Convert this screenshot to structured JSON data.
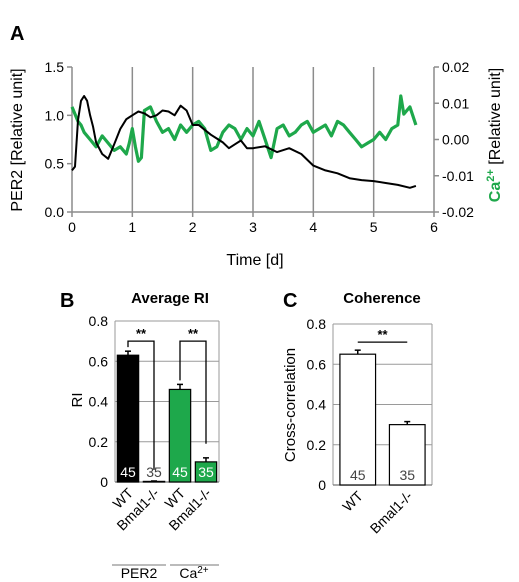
{
  "panels": {
    "a": {
      "letter": "A"
    },
    "b": {
      "letter": "B"
    },
    "c": {
      "letter": "C"
    }
  },
  "chart_data": [
    {
      "type": "line",
      "xlabel": "Time [d]",
      "ylabel": "PER2 [Relative unit]",
      "y2label_prefix": "Ca",
      "y2label_sup": "2+",
      "y2label_suffix": " [Relative unit]",
      "xlim": [
        0,
        6
      ],
      "ylim": [
        0,
        1.5
      ],
      "y2lim": [
        -0.02,
        0.02
      ],
      "x_ticks": [
        "0",
        "1",
        "2",
        "3",
        "4",
        "5",
        "6"
      ],
      "y_ticks": [
        "0.0",
        "0.5",
        "1.0",
        "1.5"
      ],
      "y2_ticks": [
        "-0.02",
        "-0.01",
        "0.00",
        "0.01",
        "0.02"
      ],
      "grid": "vertical",
      "colors": {
        "per2": "#000000",
        "ca": "#1ea84b"
      },
      "series": [
        {
          "axis": "left",
          "x": [
            0.0,
            0.05,
            0.1,
            0.15,
            0.2,
            0.25,
            0.3,
            0.35,
            0.4,
            0.5,
            0.6,
            0.7,
            0.8,
            0.9,
            1.0,
            1.1,
            1.2,
            1.3,
            1.4,
            1.5,
            1.6,
            1.7,
            1.8,
            1.9,
            2.0,
            2.1,
            2.2,
            2.3,
            2.4,
            2.5,
            2.6,
            2.7,
            2.8,
            2.9,
            3.0,
            3.2,
            3.4,
            3.6,
            3.8,
            4.0,
            4.2,
            4.4,
            4.6,
            4.8,
            5.0,
            5.2,
            5.4,
            5.6,
            5.7
          ],
          "y": [
            0.43,
            0.47,
            0.95,
            1.15,
            1.2,
            1.15,
            1.0,
            0.88,
            0.72,
            0.6,
            0.55,
            0.7,
            0.86,
            0.96,
            1.0,
            1.04,
            1.02,
            0.98,
            1.0,
            1.05,
            1.04,
            1.0,
            1.1,
            1.05,
            0.9,
            0.9,
            0.85,
            0.8,
            0.76,
            0.72,
            0.66,
            0.7,
            0.74,
            0.66,
            0.66,
            0.68,
            0.62,
            0.66,
            0.6,
            0.48,
            0.43,
            0.4,
            0.35,
            0.33,
            0.32,
            0.3,
            0.28,
            0.25,
            0.27
          ]
        },
        {
          "axis": "right",
          "x": [
            0.0,
            0.05,
            0.1,
            0.15,
            0.2,
            0.3,
            0.4,
            0.5,
            0.6,
            0.7,
            0.8,
            0.9,
            0.95,
            1.0,
            1.05,
            1.1,
            1.15,
            1.2,
            1.3,
            1.4,
            1.5,
            1.6,
            1.7,
            1.8,
            1.9,
            2.0,
            2.1,
            2.2,
            2.3,
            2.4,
            2.5,
            2.6,
            2.7,
            2.8,
            2.9,
            3.0,
            3.1,
            3.2,
            3.3,
            3.4,
            3.5,
            3.6,
            3.7,
            3.8,
            3.9,
            4.0,
            4.1,
            4.2,
            4.3,
            4.4,
            4.5,
            4.6,
            4.7,
            4.8,
            4.9,
            5.0,
            5.1,
            5.2,
            5.3,
            5.4,
            5.45,
            5.5,
            5.6,
            5.7
          ],
          "y": [
            0.009,
            0.007,
            0.005,
            0.004,
            0.002,
            0.0,
            -0.002,
            0.001,
            -0.001,
            -0.003,
            -0.002,
            -0.004,
            -0.001,
            0.003,
            -0.002,
            -0.006,
            -0.005,
            0.008,
            0.009,
            0.005,
            0.002,
            0.003,
            0.0,
            0.004,
            0.002,
            0.004,
            0.005,
            0.003,
            -0.003,
            -0.002,
            0.002,
            0.004,
            0.003,
            0.0,
            0.003,
            0.001,
            0.005,
            0.0,
            -0.005,
            0.003,
            0.004,
            0.001,
            0.002,
            0.004,
            0.005,
            0.002,
            0.003,
            0.004,
            0.001,
            0.005,
            0.004,
            0.002,
            0.0,
            -0.002,
            -0.001,
            0.0,
            0.002,
            0.0,
            0.003,
            0.004,
            0.012,
            0.007,
            0.009,
            0.004
          ]
        }
      ]
    },
    {
      "type": "bar",
      "title": "Average RI",
      "ylabel": "RI",
      "ylim": [
        0,
        0.8
      ],
      "y_ticks": [
        "0",
        "0.2",
        "0.4",
        "0.6",
        "0.8"
      ],
      "categories": [
        "WT",
        "Bmal1-/-",
        "WT",
        "Bmal1-/-"
      ],
      "groups": [
        "PER2",
        "Ca"
      ],
      "group_sup": "2+",
      "values": [
        0.63,
        0.003,
        0.46,
        0.1
      ],
      "errors": [
        0.02,
        0.002,
        0.025,
        0.02
      ],
      "n_labels": [
        "45",
        "35",
        "45",
        "35"
      ],
      "colors": [
        "#000000",
        "#ffffff",
        "#1ea84b",
        "#1ea84b"
      ],
      "significance": [
        "**",
        "**"
      ]
    },
    {
      "type": "bar",
      "title": "Coherence",
      "ylabel": "Cross-correlation",
      "ylim": [
        0,
        0.8
      ],
      "y_ticks": [
        "0",
        "0.2",
        "0.4",
        "0.6",
        "0.8"
      ],
      "categories": [
        "WT",
        "Bmal1-/-"
      ],
      "values": [
        0.65,
        0.3
      ],
      "errors": [
        0.02,
        0.015
      ],
      "n_labels": [
        "45",
        "35"
      ],
      "colors": [
        "#ffffff",
        "#ffffff"
      ],
      "significance": [
        "**"
      ]
    }
  ]
}
